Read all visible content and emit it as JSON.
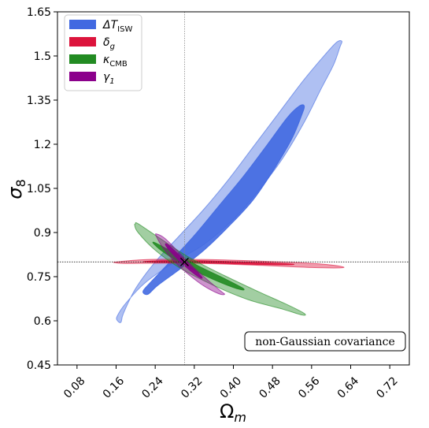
{
  "chart_data": {
    "type": "contour",
    "xlabel": "Ωm",
    "ylabel": "σ8",
    "xlim": [
      0.04,
      0.76
    ],
    "ylim": [
      0.45,
      1.65
    ],
    "xticks": [
      "0.08",
      "0.16",
      "0.24",
      "0.32",
      "0.40",
      "0.48",
      "0.56",
      "0.64",
      "0.72"
    ],
    "yticks": [
      "0.45",
      "0.6",
      "0.75",
      "0.9",
      "1.05",
      "1.2",
      "1.35",
      "1.5",
      "1.65"
    ],
    "fiducial": {
      "omega_m": 0.3,
      "sigma8": 0.8
    },
    "legend_position": "top-left",
    "annotation": "non-Gaussian covariance",
    "series": [
      {
        "name": "ΔT_ISW",
        "legend_main": "ΔT",
        "legend_sub": "ISW",
        "color": "#4169e1",
        "contours": [
          {
            "level": "outer",
            "path": [
              [
                0.17,
                0.595
              ],
              [
                0.163,
                0.6
              ],
              [
                0.162,
                0.615
              ],
              [
                0.18,
                0.66
              ],
              [
                0.22,
                0.73
              ],
              [
                0.28,
                0.8
              ],
              [
                0.34,
                0.86
              ],
              [
                0.4,
                0.945
              ],
              [
                0.45,
                1.04
              ],
              [
                0.5,
                1.15
              ],
              [
                0.545,
                1.275
              ],
              [
                0.58,
                1.39
              ],
              [
                0.605,
                1.47
              ],
              [
                0.618,
                1.53
              ],
              [
                0.622,
                1.55
              ],
              [
                0.61,
                1.545
              ],
              [
                0.58,
                1.49
              ],
              [
                0.54,
                1.41
              ],
              [
                0.49,
                1.3
              ],
              [
                0.44,
                1.19
              ],
              [
                0.39,
                1.08
              ],
              [
                0.34,
                0.98
              ],
              [
                0.29,
                0.89
              ],
              [
                0.24,
                0.8
              ],
              [
                0.2,
                0.71
              ],
              [
                0.175,
                0.625
              ]
            ]
          },
          {
            "level": "inner",
            "path": [
              [
                0.225,
                0.69
              ],
              [
                0.245,
                0.72
              ],
              [
                0.29,
                0.775
              ],
              [
                0.34,
                0.84
              ],
              [
                0.39,
                0.92
              ],
              [
                0.44,
                1.01
              ],
              [
                0.485,
                1.12
              ],
              [
                0.52,
                1.22
              ],
              [
                0.54,
                1.3
              ],
              [
                0.545,
                1.33
              ],
              [
                0.535,
                1.33
              ],
              [
                0.51,
                1.29
              ],
              [
                0.47,
                1.2
              ],
              [
                0.42,
                1.09
              ],
              [
                0.37,
                0.99
              ],
              [
                0.32,
                0.89
              ],
              [
                0.27,
                0.8
              ],
              [
                0.23,
                0.73
              ],
              [
                0.215,
                0.7
              ]
            ]
          }
        ]
      },
      {
        "name": "δ_g",
        "legend_main": "δ",
        "legend_sub": "g",
        "color": "#dc143c",
        "contours": [
          {
            "level": "outer",
            "path": [
              [
                0.16,
                0.8
              ],
              [
                0.22,
                0.808
              ],
              [
                0.3,
                0.809
              ],
              [
                0.4,
                0.806
              ],
              [
                0.5,
                0.8
              ],
              [
                0.58,
                0.793
              ],
              [
                0.62,
                0.785
              ],
              [
                0.62,
                0.78
              ],
              [
                0.56,
                0.781
              ],
              [
                0.46,
                0.788
              ],
              [
                0.36,
                0.794
              ],
              [
                0.26,
                0.796
              ],
              [
                0.18,
                0.795
              ],
              [
                0.16,
                0.797
              ]
            ]
          },
          {
            "level": "inner",
            "path": [
              [
                0.22,
                0.802
              ],
              [
                0.3,
                0.805
              ],
              [
                0.4,
                0.801
              ],
              [
                0.5,
                0.795
              ],
              [
                0.52,
                0.791
              ],
              [
                0.44,
                0.792
              ],
              [
                0.34,
                0.797
              ],
              [
                0.24,
                0.799
              ]
            ]
          }
        ]
      },
      {
        "name": "κ_CMB",
        "legend_main": "κ",
        "legend_sub": "CMB",
        "color": "#228b22",
        "contours": [
          {
            "level": "outer",
            "path": [
              [
                0.2,
                0.93
              ],
              [
                0.205,
                0.93
              ],
              [
                0.25,
                0.88
              ],
              [
                0.31,
                0.815
              ],
              [
                0.38,
                0.755
              ],
              [
                0.45,
                0.7
              ],
              [
                0.51,
                0.655
              ],
              [
                0.545,
                0.625
              ],
              [
                0.54,
                0.62
              ],
              [
                0.5,
                0.64
              ],
              [
                0.43,
                0.672
              ],
              [
                0.36,
                0.72
              ],
              [
                0.29,
                0.78
              ],
              [
                0.24,
                0.84
              ],
              [
                0.205,
                0.9
              ],
              [
                0.198,
                0.925
              ]
            ]
          },
          {
            "level": "inner",
            "path": [
              [
                0.24,
                0.865
              ],
              [
                0.28,
                0.83
              ],
              [
                0.33,
                0.785
              ],
              [
                0.38,
                0.745
              ],
              [
                0.42,
                0.71
              ],
              [
                0.41,
                0.708
              ],
              [
                0.36,
                0.74
              ],
              [
                0.31,
                0.78
              ],
              [
                0.26,
                0.83
              ],
              [
                0.238,
                0.86
              ]
            ]
          }
        ]
      },
      {
        "name": "γ_1",
        "legend_main": "γ",
        "legend_sub": "1",
        "color": "#8b008b",
        "contours": [
          {
            "level": "outer",
            "path": [
              [
                0.243,
                0.895
              ],
              [
                0.26,
                0.88
              ],
              [
                0.29,
                0.83
              ],
              [
                0.32,
                0.78
              ],
              [
                0.35,
                0.735
              ],
              [
                0.375,
                0.7
              ],
              [
                0.382,
                0.69
              ],
              [
                0.37,
                0.692
              ],
              [
                0.34,
                0.718
              ],
              [
                0.31,
                0.755
              ],
              [
                0.28,
                0.8
              ],
              [
                0.255,
                0.85
              ],
              [
                0.242,
                0.888
              ]
            ]
          },
          {
            "level": "inner",
            "path": [
              [
                0.265,
                0.86
              ],
              [
                0.285,
                0.83
              ],
              [
                0.31,
                0.79
              ],
              [
                0.335,
                0.75
              ],
              [
                0.33,
                0.748
              ],
              [
                0.305,
                0.78
              ],
              [
                0.28,
                0.82
              ],
              [
                0.262,
                0.855
              ]
            ]
          }
        ]
      }
    ]
  }
}
